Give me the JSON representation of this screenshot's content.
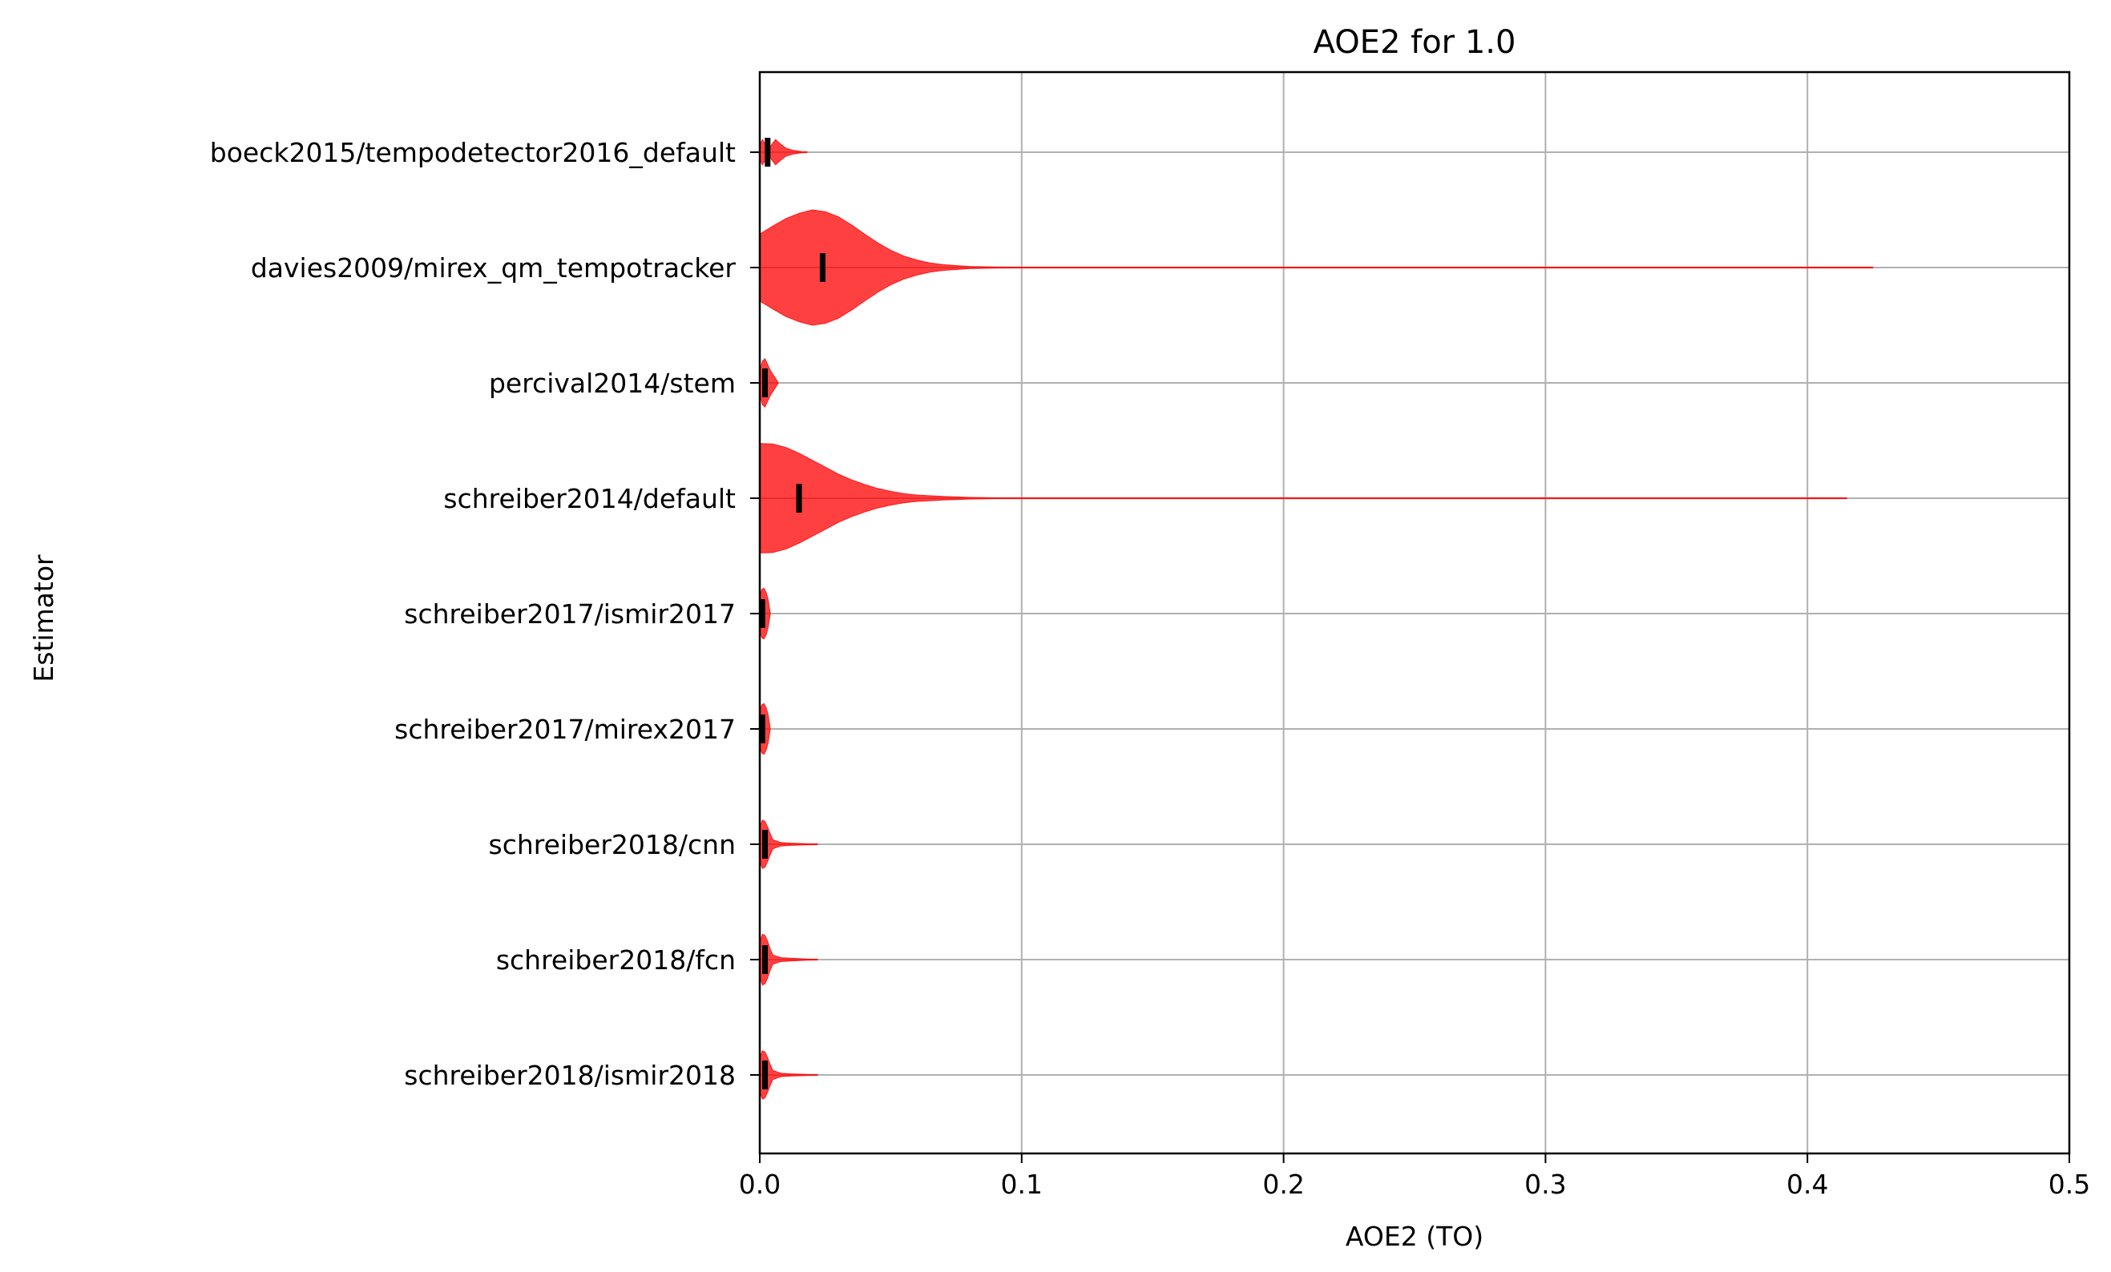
{
  "chart_data": {
    "type": "violin",
    "orientation": "horizontal",
    "title": "AOE2 for 1.0",
    "xlabel": "AOE2 (TO)",
    "ylabel": "Estimator",
    "xlim": [
      0.0,
      0.5
    ],
    "xticks": [
      "0.0",
      "0.1",
      "0.2",
      "0.3",
      "0.4",
      "0.5"
    ],
    "grid": true,
    "color": "#ff0000",
    "median_color": "#000000",
    "categories": [
      "boeck2015/tempodetector2016_default",
      "davies2009/mirex_qm_tempotracker",
      "percival2014/stem",
      "schreiber2014/default",
      "schreiber2017/ismir2017",
      "schreiber2017/mirex2017",
      "schreiber2018/cnn",
      "schreiber2018/fcn",
      "schreiber2018/ismir2018"
    ],
    "medians": [
      0.003,
      0.024,
      0.002,
      0.015,
      0.001,
      0.001,
      0.002,
      0.002,
      0.002
    ],
    "max_values": [
      0.018,
      0.425,
      0.007,
      0.415,
      0.004,
      0.004,
      0.022,
      0.022,
      0.022
    ],
    "density_profiles": [
      [
        [
          0,
          0.12
        ],
        [
          0.001,
          0.22
        ],
        [
          0.002,
          0.15
        ],
        [
          0.003,
          0.07
        ],
        [
          0.004,
          0.1
        ],
        [
          0.006,
          0.22
        ],
        [
          0.008,
          0.14
        ],
        [
          0.01,
          0.07
        ],
        [
          0.013,
          0.03
        ],
        [
          0.016,
          0.01
        ],
        [
          0.018,
          0.0
        ]
      ],
      [
        [
          0,
          0.58
        ],
        [
          0.005,
          0.72
        ],
        [
          0.01,
          0.85
        ],
        [
          0.015,
          0.94
        ],
        [
          0.02,
          1.0
        ],
        [
          0.025,
          0.97
        ],
        [
          0.03,
          0.88
        ],
        [
          0.035,
          0.74
        ],
        [
          0.04,
          0.58
        ],
        [
          0.045,
          0.43
        ],
        [
          0.05,
          0.3
        ],
        [
          0.055,
          0.2
        ],
        [
          0.06,
          0.13
        ],
        [
          0.065,
          0.08
        ],
        [
          0.07,
          0.05
        ],
        [
          0.08,
          0.02
        ],
        [
          0.09,
          0.01
        ],
        [
          0.1,
          0.004
        ],
        [
          0.2,
          0.002
        ],
        [
          0.3,
          0.002
        ],
        [
          0.395,
          0.004
        ],
        [
          0.41,
          0.008
        ],
        [
          0.42,
          0.004
        ],
        [
          0.425,
          0.0
        ]
      ],
      [
        [
          0,
          0.2
        ],
        [
          0.001,
          0.38
        ],
        [
          0.002,
          0.42
        ],
        [
          0.003,
          0.32
        ],
        [
          0.004,
          0.22
        ],
        [
          0.005,
          0.15
        ],
        [
          0.006,
          0.08
        ],
        [
          0.007,
          0.0
        ]
      ],
      [
        [
          0,
          0.95
        ],
        [
          0.005,
          0.94
        ],
        [
          0.01,
          0.88
        ],
        [
          0.015,
          0.78
        ],
        [
          0.02,
          0.66
        ],
        [
          0.025,
          0.54
        ],
        [
          0.03,
          0.42
        ],
        [
          0.035,
          0.32
        ],
        [
          0.04,
          0.24
        ],
        [
          0.045,
          0.17
        ],
        [
          0.05,
          0.12
        ],
        [
          0.055,
          0.08
        ],
        [
          0.06,
          0.055
        ],
        [
          0.07,
          0.03
        ],
        [
          0.08,
          0.015
        ],
        [
          0.09,
          0.008
        ],
        [
          0.1,
          0.005
        ],
        [
          0.2,
          0.003
        ],
        [
          0.3,
          0.003
        ],
        [
          0.38,
          0.004
        ],
        [
          0.405,
          0.004
        ],
        [
          0.415,
          0.0
        ]
      ],
      [
        [
          0,
          0.3
        ],
        [
          0.0008,
          0.42
        ],
        [
          0.0016,
          0.44
        ],
        [
          0.0025,
          0.36
        ],
        [
          0.0032,
          0.24
        ],
        [
          0.004,
          0.0
        ]
      ],
      [
        [
          0,
          0.3
        ],
        [
          0.0008,
          0.42
        ],
        [
          0.0016,
          0.44
        ],
        [
          0.0025,
          0.36
        ],
        [
          0.0032,
          0.24
        ],
        [
          0.004,
          0.0
        ]
      ],
      [
        [
          0,
          0.3
        ],
        [
          0.001,
          0.42
        ],
        [
          0.002,
          0.4
        ],
        [
          0.003,
          0.3
        ],
        [
          0.004,
          0.18
        ],
        [
          0.005,
          0.08
        ],
        [
          0.008,
          0.03
        ],
        [
          0.012,
          0.02
        ],
        [
          0.018,
          0.01
        ],
        [
          0.022,
          0.0
        ]
      ],
      [
        [
          0,
          0.3
        ],
        [
          0.001,
          0.44
        ],
        [
          0.002,
          0.42
        ],
        [
          0.003,
          0.32
        ],
        [
          0.004,
          0.18
        ],
        [
          0.005,
          0.08
        ],
        [
          0.008,
          0.035
        ],
        [
          0.012,
          0.025
        ],
        [
          0.018,
          0.01
        ],
        [
          0.022,
          0.0
        ]
      ],
      [
        [
          0,
          0.3
        ],
        [
          0.001,
          0.42
        ],
        [
          0.002,
          0.4
        ],
        [
          0.003,
          0.3
        ],
        [
          0.004,
          0.18
        ],
        [
          0.005,
          0.08
        ],
        [
          0.008,
          0.03
        ],
        [
          0.012,
          0.02
        ],
        [
          0.018,
          0.01
        ],
        [
          0.022,
          0.0
        ]
      ]
    ]
  }
}
